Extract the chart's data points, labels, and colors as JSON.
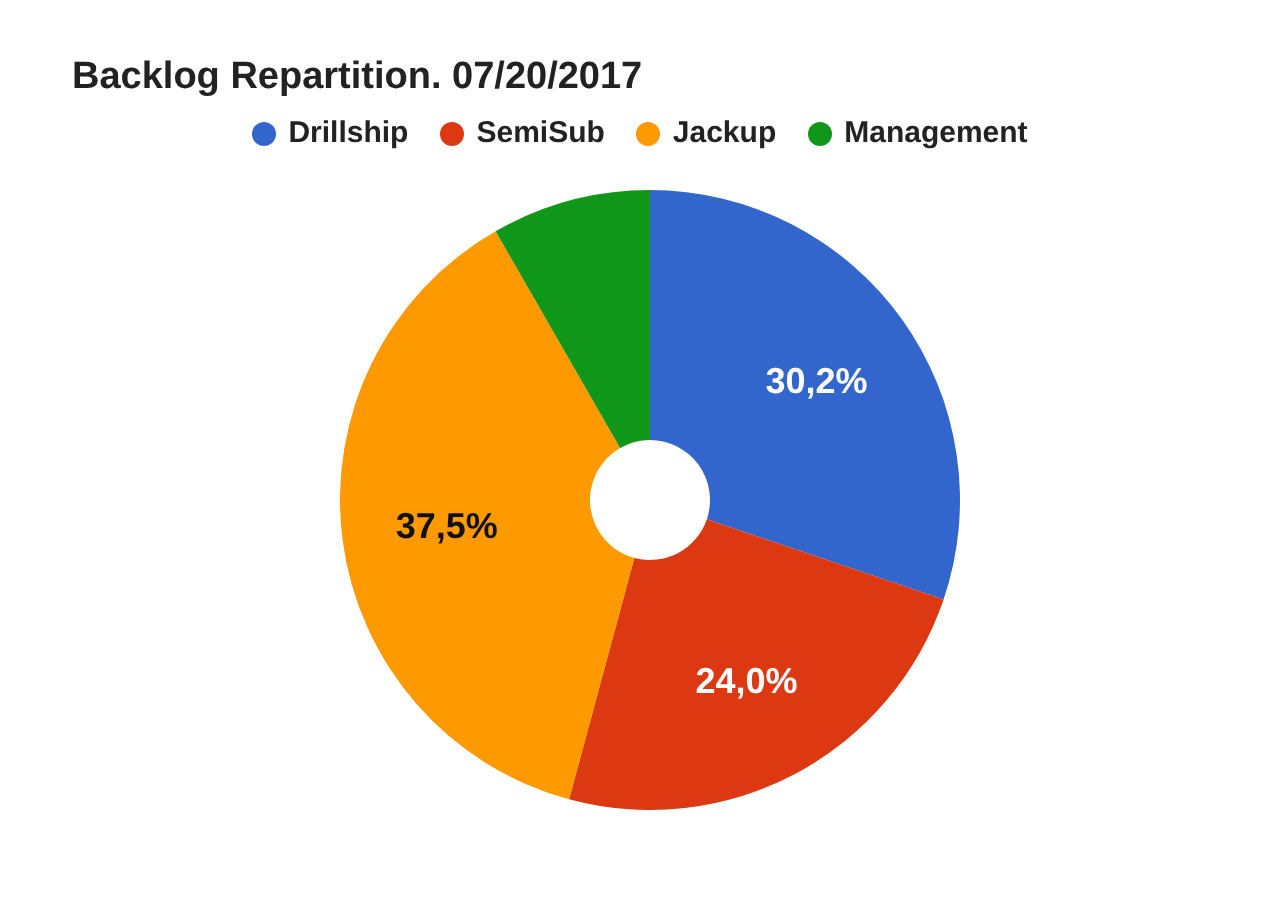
{
  "chart_data": {
    "type": "donut",
    "title": "Backlog Repartition. 07/20/2017",
    "categories": [
      "Drillship",
      "SemiSub",
      "Jackup",
      "Management"
    ],
    "values": [
      30.2,
      24.0,
      37.5,
      8.3
    ],
    "colors": [
      "#3366cc",
      "#dc3912",
      "#ff9900",
      "#109618"
    ],
    "value_labels": [
      "30,2%",
      "24,0%",
      "37,5%",
      null
    ],
    "legend": "top"
  }
}
